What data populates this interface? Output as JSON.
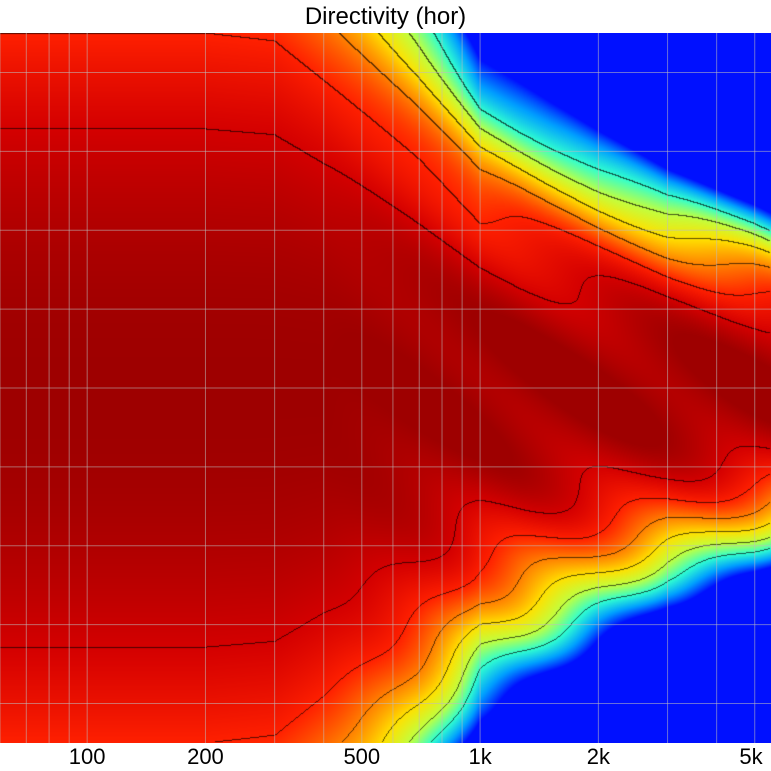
{
  "chart_data": {
    "type": "heatmap",
    "title": "Directivity (hor)",
    "xlabel": "",
    "ylabel": "",
    "x_scale": "log",
    "xlim": [
      60,
      5500
    ],
    "ylim": [
      -90,
      90
    ],
    "x_ticks": [
      {
        "value": 100,
        "label": "100"
      },
      {
        "value": 200,
        "label": "200"
      },
      {
        "value": 500,
        "label": "500"
      },
      {
        "value": 1000,
        "label": "1k"
      },
      {
        "value": 2000,
        "label": "2k"
      },
      {
        "value": 5000,
        "label": "5k"
      }
    ],
    "x_grid": [
      60,
      70,
      80,
      90,
      100,
      200,
      300,
      400,
      500,
      600,
      700,
      800,
      900,
      1000,
      2000,
      3000,
      4000,
      5000
    ],
    "y_grid": [
      -80,
      -60,
      -40,
      -20,
      0,
      20,
      40,
      60,
      80
    ],
    "grid": true,
    "colormap": [
      "#9e0000",
      "#d40000",
      "#ff2000",
      "#ff8000",
      "#ffe000",
      "#c0ff40",
      "#30ffd0",
      "#00a0ff",
      "#0010ff"
    ],
    "contour_levels_db": [
      -3,
      -6,
      -9,
      -12,
      -15,
      -18
    ],
    "min_db": -24,
    "beamwidth_half_angle_deg": [
      {
        "f": 60,
        "angle": 90
      },
      {
        "f": 100,
        "angle": 90
      },
      {
        "f": 200,
        "angle": 90
      },
      {
        "f": 300,
        "angle": 88
      },
      {
        "f": 400,
        "angle": 78
      },
      {
        "f": 500,
        "angle": 70
      },
      {
        "f": 700,
        "angle": 58
      },
      {
        "f": 1000,
        "angle": 44
      },
      {
        "f": 1500,
        "angle": 38
      },
      {
        "f": 2000,
        "angle": 34
      },
      {
        "f": 3000,
        "angle": 29
      },
      {
        "f": 5000,
        "angle": 25
      },
      {
        "f": 5500,
        "angle": 24
      }
    ]
  }
}
